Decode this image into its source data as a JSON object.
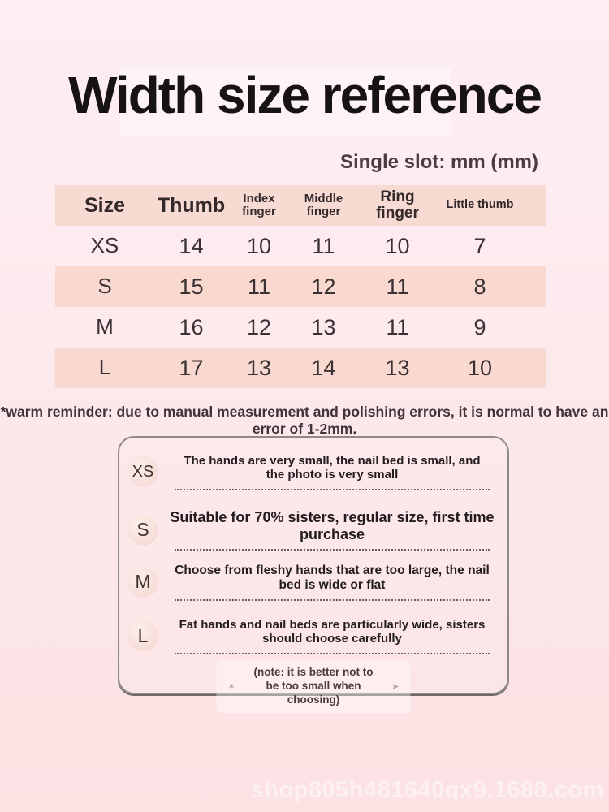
{
  "page": {
    "title": "Width size reference",
    "subtitle": "Single slot: mm (mm)",
    "reminder": "*warm reminder: due to manual measurement and polishing errors, it is normal to have an error of 1-2mm.",
    "watermark": "shop805h481640qx9.1688.com"
  },
  "table": {
    "headers": [
      "Size",
      "Thumb",
      "Index finger",
      "Middle finger",
      "Ring finger",
      "Little thumb"
    ],
    "rows": [
      {
        "size": "XS",
        "values": [
          "14",
          "10",
          "11",
          "10",
          "7"
        ]
      },
      {
        "size": "S",
        "values": [
          "15",
          "11",
          "12",
          "11",
          "8"
        ]
      },
      {
        "size": "M",
        "values": [
          "16",
          "12",
          "13",
          "11",
          "9"
        ]
      },
      {
        "size": "L",
        "values": [
          "17",
          "13",
          "14",
          "13",
          "10"
        ]
      }
    ]
  },
  "legend": {
    "items": [
      {
        "size": "XS",
        "text": "The hands are very small, the nail bed is small, and the photo is very small"
      },
      {
        "size": "S",
        "text": "Suitable for 70% sisters, regular size, first time purchase"
      },
      {
        "size": "M",
        "text": "Choose from fleshy hands that are too large, the nail bed is wide or flat"
      },
      {
        "size": "L",
        "text": "Fat hands and nail beds are particularly wide, sisters should choose carefully"
      }
    ],
    "note": "(note: it is better not to be too small when choosing)",
    "note_left_mark": "✶",
    "note_right_mark": "➤"
  },
  "chart_data": {
    "type": "table",
    "title": "Width size reference",
    "unit": "Single slot: mm (mm)",
    "columns": [
      "Size",
      "Thumb",
      "Index finger",
      "Middle finger",
      "Ring finger",
      "Little thumb"
    ],
    "rows": [
      [
        "XS",
        14,
        10,
        11,
        10,
        7
      ],
      [
        "S",
        15,
        11,
        12,
        11,
        8
      ],
      [
        "M",
        16,
        12,
        13,
        11,
        9
      ],
      [
        "L",
        17,
        13,
        14,
        13,
        10
      ]
    ]
  },
  "colors": {
    "background_top": "#fdeef4",
    "background_bottom": "#fce2e3",
    "header_band": "#f7dbd3",
    "row_stripe": "#f9d8cf",
    "text_dark": "#362b2e",
    "box_border": "#8f8a88"
  }
}
